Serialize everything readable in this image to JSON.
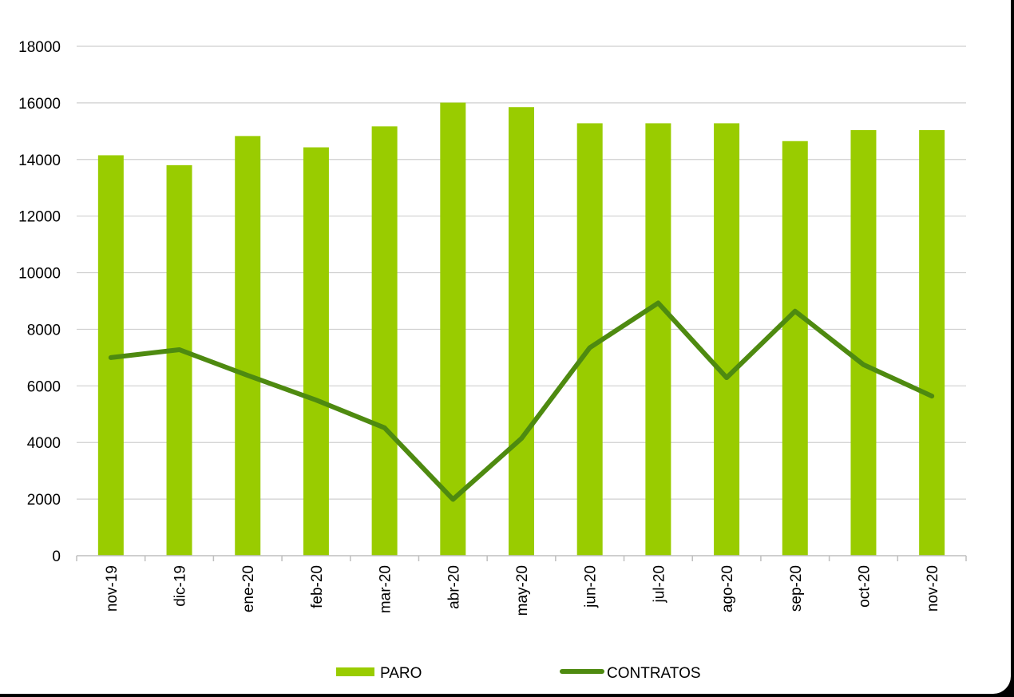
{
  "chart_data": {
    "type": "bar+line",
    "categories": [
      "nov-19",
      "dic-19",
      "ene-20",
      "feb-20",
      "mar-20",
      "abr-20",
      "may-20",
      "jun-20",
      "jul-20",
      "ago-20",
      "sep-20",
      "oct-20",
      "nov-20"
    ],
    "series": [
      {
        "name": "PARO",
        "type": "bar",
        "color": "#99cc00",
        "values": [
          14150,
          13800,
          14830,
          14430,
          15170,
          16010,
          15850,
          15280,
          15280,
          15280,
          14650,
          15040,
          15040
        ]
      },
      {
        "name": "CONTRATOS",
        "type": "line",
        "color": "#4e8a10",
        "values": [
          7000,
          7280,
          6370,
          5500,
          4520,
          1990,
          4140,
          7350,
          8930,
          6290,
          8640,
          6750,
          5640
        ]
      }
    ],
    "ylim": [
      0,
      18000
    ],
    "yticks": [
      0,
      2000,
      4000,
      6000,
      8000,
      10000,
      12000,
      14000,
      16000,
      18000
    ],
    "grid": true,
    "legend_position": "bottom"
  }
}
